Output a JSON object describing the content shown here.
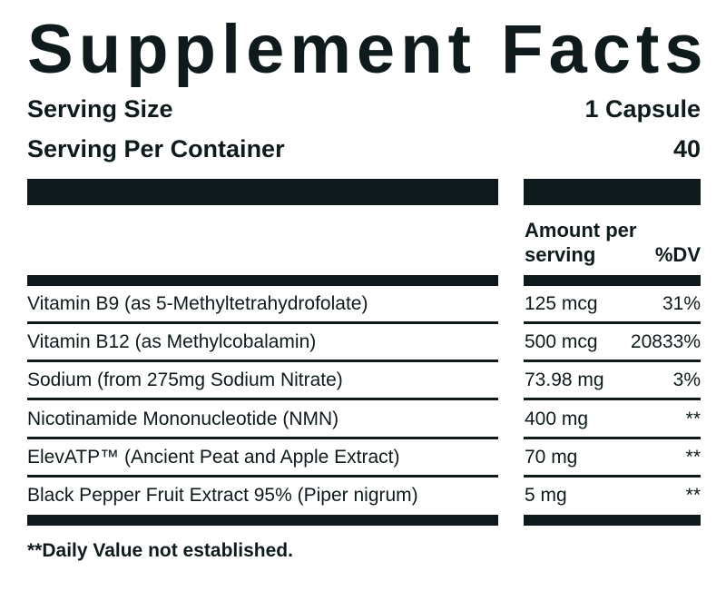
{
  "title": "Supplement Facts",
  "serving": [
    {
      "label": "Serving Size",
      "value": "1 Capsule"
    },
    {
      "label": "Serving Per Container",
      "value": "40"
    }
  ],
  "table": {
    "header": {
      "amount": "Amount per serving",
      "dv": "%DV"
    },
    "rows": [
      [
        "Vitamin B9 (as 5-Methyltetrahydrofolate)",
        "125 mcg",
        "31%"
      ],
      [
        "Vitamin B12 (as Methylcobalamin)",
        "500 mcg",
        "20833%"
      ],
      [
        "Sodium (from 275mg Sodium Nitrate)",
        "73.98 mg",
        "3%"
      ],
      [
        "Nicotinamide Mononucleotide (NMN)",
        "400 mg",
        "**"
      ],
      [
        "ElevATP™ (Ancient Peat and Apple Extract)",
        "70 mg",
        "**"
      ],
      [
        "Black Pepper Fruit Extract 95% (Piper nigrum)",
        "5 mg",
        "**"
      ]
    ]
  },
  "footnote": "**Daily Value not established."
}
